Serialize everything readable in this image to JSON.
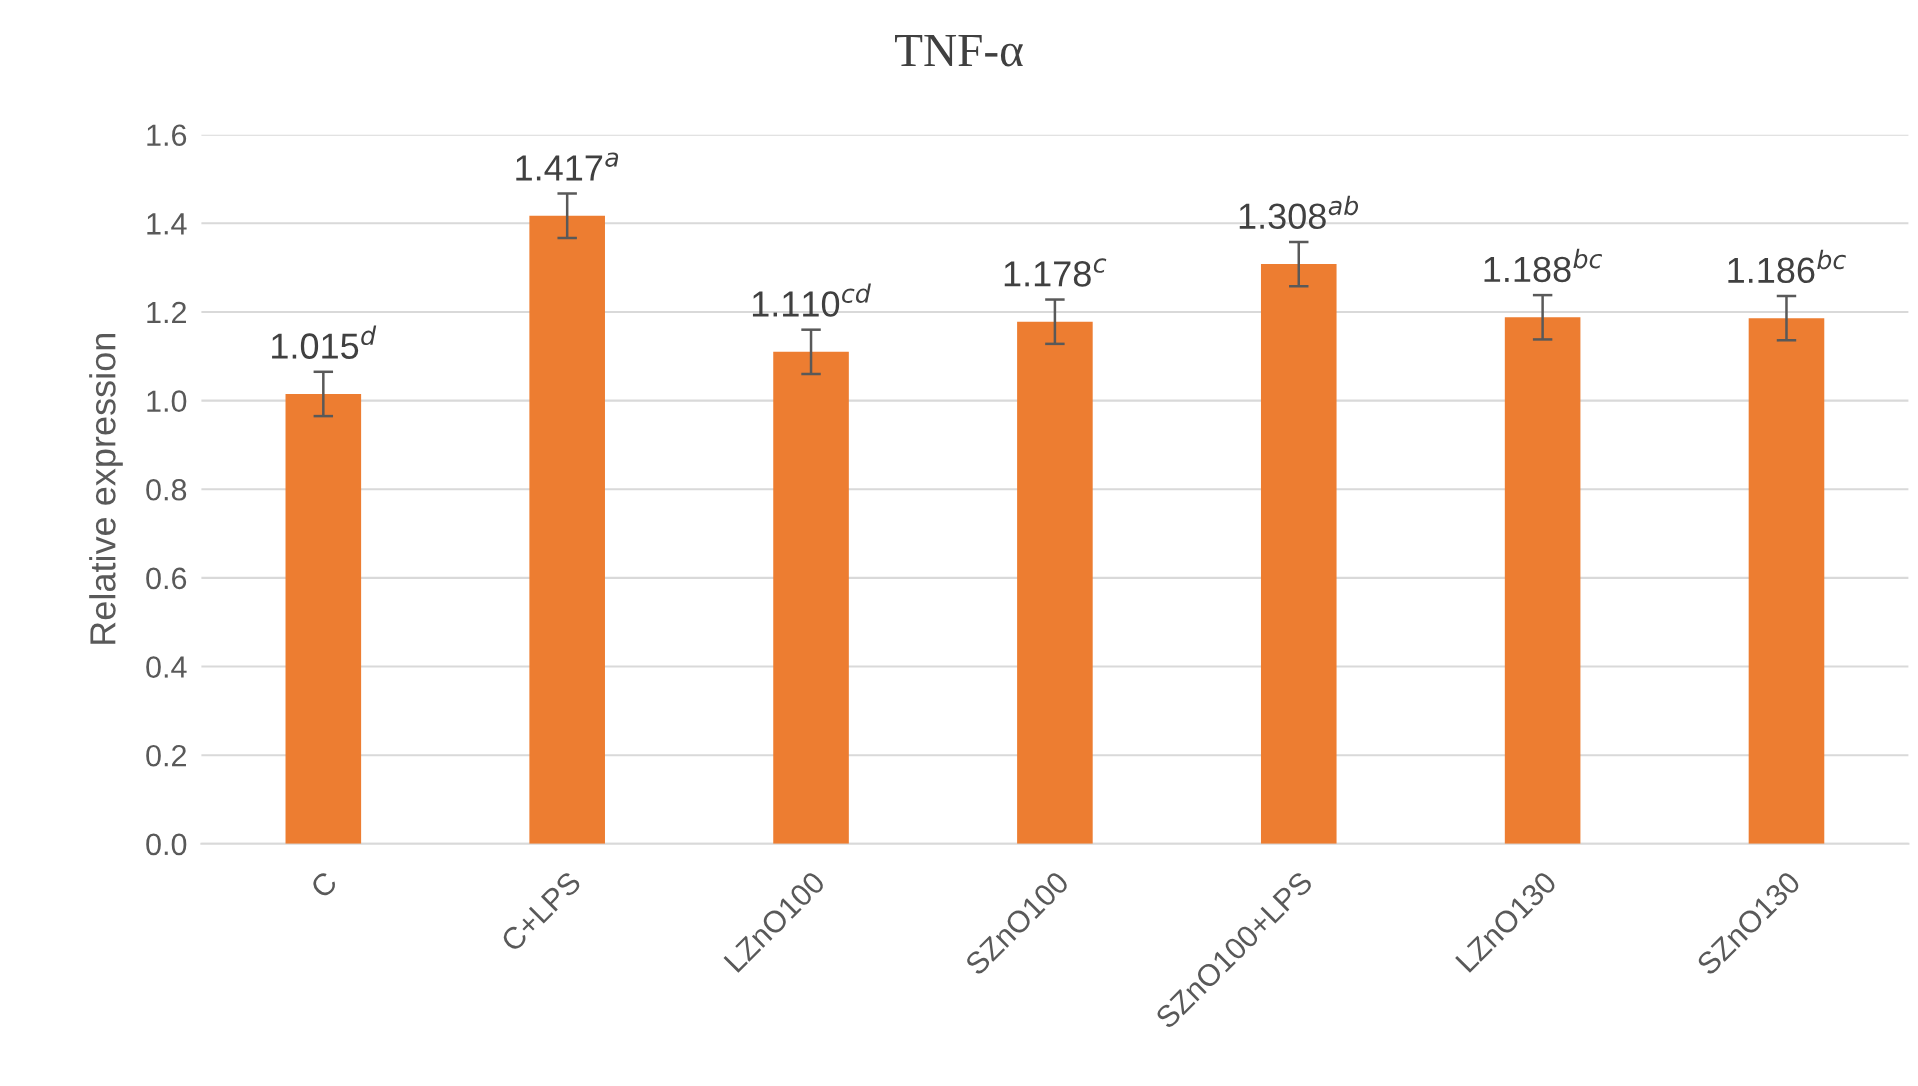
{
  "chart_data": {
    "type": "bar",
    "title": "TNF-α",
    "ylabel": "Relative expression",
    "categories": [
      "C",
      "C+LPS",
      "LZnO100",
      "SZnO100",
      "SZnO100+LPS",
      "LZnO130",
      "SZnO130"
    ],
    "values": [
      1.015,
      1.417,
      1.11,
      1.178,
      1.308,
      1.188,
      1.186
    ],
    "errors": [
      0.05,
      0.05,
      0.05,
      0.05,
      0.05,
      0.05,
      0.05
    ],
    "value_labels": [
      "1.015$^{d}$",
      "1.417$^{a}$",
      "1.110$^{cd}$",
      "1.178$^{c}$",
      "1.308$^{ab}$",
      "1.188$^{bc}$",
      "1.186$^{bc}$"
    ],
    "color": "#ed7d31",
    "ylim": [
      0,
      1.6
    ],
    "yticks": [
      {
        "value": 0,
        "label": "0.0"
      },
      {
        "value": 0.2,
        "label": "0.2"
      },
      {
        "value": 0.4,
        "label": "0.4"
      },
      {
        "value": 0.6,
        "label": "0.6"
      },
      {
        "value": 0.8,
        "label": "0.8"
      },
      {
        "value": 1.0,
        "label": "1.0"
      },
      {
        "value": 1.2,
        "label": "1.2"
      },
      {
        "value": 1.4,
        "label": "1.4"
      },
      {
        "value": 1.6,
        "label": "1.6"
      }
    ],
    "grid": "y",
    "legend": false
  }
}
